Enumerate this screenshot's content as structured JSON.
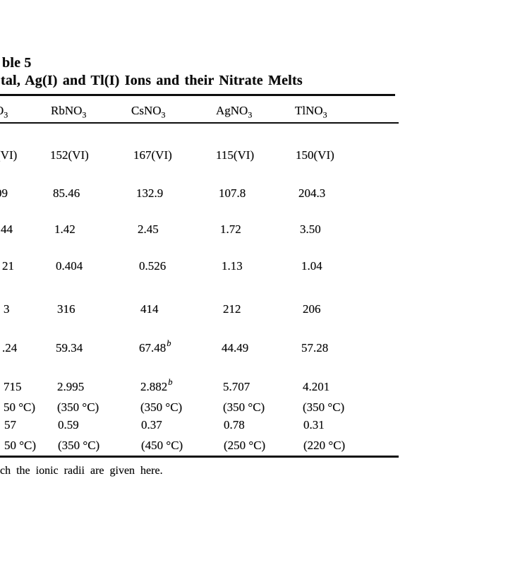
{
  "doc": {
    "title_line1": "ble 5",
    "title_line2": "tal, Ag(I) and Tl(I) Ions and their Nitrate Melts",
    "footnote": "ch the ionic radii are given here."
  },
  "colors": {
    "background": "#ffffff",
    "text": "#0b0b0b",
    "rule": "#0e0e0e"
  },
  "table": {
    "header": [
      {
        "main": "O",
        "sub": "3"
      },
      {
        "main": "RbNO",
        "sub": "3"
      },
      {
        "main": "CsNO",
        "sub": "3"
      },
      {
        "main": "AgNO",
        "sub": "3"
      },
      {
        "main": "TlNO",
        "sub": "3"
      }
    ],
    "rows": [
      {
        "cells": [
          {
            "main": "(VI)"
          },
          {
            "main": "152(VI)"
          },
          {
            "main": "167(VI)"
          },
          {
            "main": "115(VI)"
          },
          {
            "main": "150(VI)"
          }
        ]
      },
      {
        "cells": [
          {
            "main": "09"
          },
          {
            "main": "85.46"
          },
          {
            "main": "132.9"
          },
          {
            "main": "107.8"
          },
          {
            "main": "204.3"
          }
        ]
      },
      {
        "cells": [
          {
            "main": "44"
          },
          {
            "main": "1.42"
          },
          {
            "main": "2.45"
          },
          {
            "main": "1.72"
          },
          {
            "main": "3.50"
          }
        ]
      },
      {
        "cells": [
          {
            "main": "21"
          },
          {
            "main": "0.404"
          },
          {
            "main": "0.526"
          },
          {
            "main": "1.13"
          },
          {
            "main": "1.04"
          }
        ]
      },
      {
        "cells": [
          {
            "main": "3"
          },
          {
            "main": "316"
          },
          {
            "main": "414"
          },
          {
            "main": "212"
          },
          {
            "main": "206"
          }
        ]
      },
      {
        "cells": [
          {
            "main": ".24"
          },
          {
            "main": "59.34"
          },
          {
            "main": "67.48",
            "sup": "b"
          },
          {
            "main": "44.49"
          },
          {
            "main": "57.28"
          }
        ]
      },
      {
        "cells": [
          {
            "main": "715",
            "line2": "50 °C)"
          },
          {
            "main": "2.995",
            "line2": "(350 °C)"
          },
          {
            "main": "2.882",
            "sup": "b",
            "line2": "(350 °C)"
          },
          {
            "main": "5.707",
            "line2": "(350 °C)"
          },
          {
            "main": "4.201",
            "line2": "(350 °C)"
          }
        ]
      },
      {
        "cells": [
          {
            "main": "57",
            "line2": "50 °C)"
          },
          {
            "main": "0.59",
            "line2": "(350 °C)"
          },
          {
            "main": "0.37",
            "line2": "(450 °C)"
          },
          {
            "main": "0.78",
            "line2": "(250 °C)"
          },
          {
            "main": "0.31",
            "line2": "(220 °C)"
          }
        ]
      }
    ]
  }
}
